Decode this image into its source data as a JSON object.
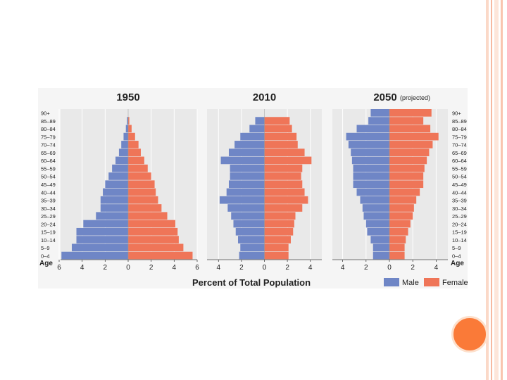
{
  "colors": {
    "male": "#6f86c6",
    "female": "#ef7558",
    "panel_bg": "#e9e9e9",
    "accent": "#f96f2c"
  },
  "chart_data": {
    "type": "bar",
    "subtype": "population-pyramid",
    "age_groups": [
      "0-4",
      "5-9",
      "10-14",
      "15-19",
      "20-24",
      "25-29",
      "30-34",
      "35-39",
      "40-44",
      "45-49",
      "50-54",
      "55-59",
      "60-64",
      "65-69",
      "70-74",
      "75-79",
      "80-84",
      "85-89",
      "90+"
    ],
    "age_labels": [
      "0–4",
      "5–9",
      "10–14",
      "15–19",
      "20–24",
      "25–29",
      "30–34",
      "35–39",
      "40–44",
      "45–49",
      "50–54",
      "55–59",
      "60–64",
      "65–69",
      "70–74",
      "75–79",
      "80–84",
      "85–89",
      "90+"
    ],
    "age_axis_label": "Age",
    "xlabel": "Percent of Total Population",
    "legend": [
      {
        "label": "Male",
        "key": "male"
      },
      {
        "label": "Female",
        "key": "female"
      }
    ],
    "panels": [
      {
        "title": "1950",
        "subtitle": "",
        "xlim": 6,
        "ticks": [
          "6",
          "4",
          "2",
          "0",
          "2",
          "4",
          "6"
        ],
        "male": [
          5.8,
          4.9,
          4.5,
          4.5,
          3.9,
          2.8,
          2.4,
          2.4,
          2.2,
          2.0,
          1.7,
          1.4,
          1.1,
          0.8,
          0.6,
          0.4,
          0.2,
          0.1,
          0.0
        ],
        "female": [
          5.6,
          4.8,
          4.4,
          4.3,
          4.1,
          3.4,
          2.9,
          2.6,
          2.4,
          2.3,
          2.0,
          1.7,
          1.4,
          1.1,
          0.9,
          0.6,
          0.3,
          0.1,
          0.0
        ]
      },
      {
        "title": "2010",
        "subtitle": "",
        "xlim": 5,
        "ticks": [
          "4",
          "2",
          "0",
          "2",
          "4"
        ],
        "male": [
          2.2,
          2.1,
          2.3,
          2.5,
          2.7,
          2.9,
          3.2,
          3.9,
          3.3,
          3.1,
          3.0,
          3.0,
          3.8,
          3.1,
          2.6,
          2.1,
          1.3,
          0.8,
          0.0
        ],
        "female": [
          2.1,
          2.1,
          2.3,
          2.5,
          2.6,
          2.7,
          3.3,
          3.8,
          3.5,
          3.3,
          3.2,
          3.3,
          4.1,
          3.5,
          2.9,
          2.8,
          2.4,
          2.2,
          0.0
        ]
      },
      {
        "title": "2050",
        "subtitle": "(projected)",
        "xlim": 5,
        "ticks": [
          "4",
          "2",
          "0",
          "2",
          "4"
        ],
        "male": [
          1.4,
          1.4,
          1.6,
          1.9,
          2.0,
          2.2,
          2.3,
          2.5,
          2.8,
          3.1,
          3.1,
          3.1,
          3.2,
          3.3,
          3.5,
          3.7,
          2.8,
          1.8,
          1.6
        ],
        "female": [
          1.3,
          1.3,
          1.4,
          1.6,
          1.8,
          2.0,
          2.1,
          2.3,
          2.6,
          2.9,
          2.9,
          3.0,
          3.2,
          3.4,
          3.7,
          4.2,
          3.5,
          2.9,
          3.6
        ]
      }
    ]
  }
}
